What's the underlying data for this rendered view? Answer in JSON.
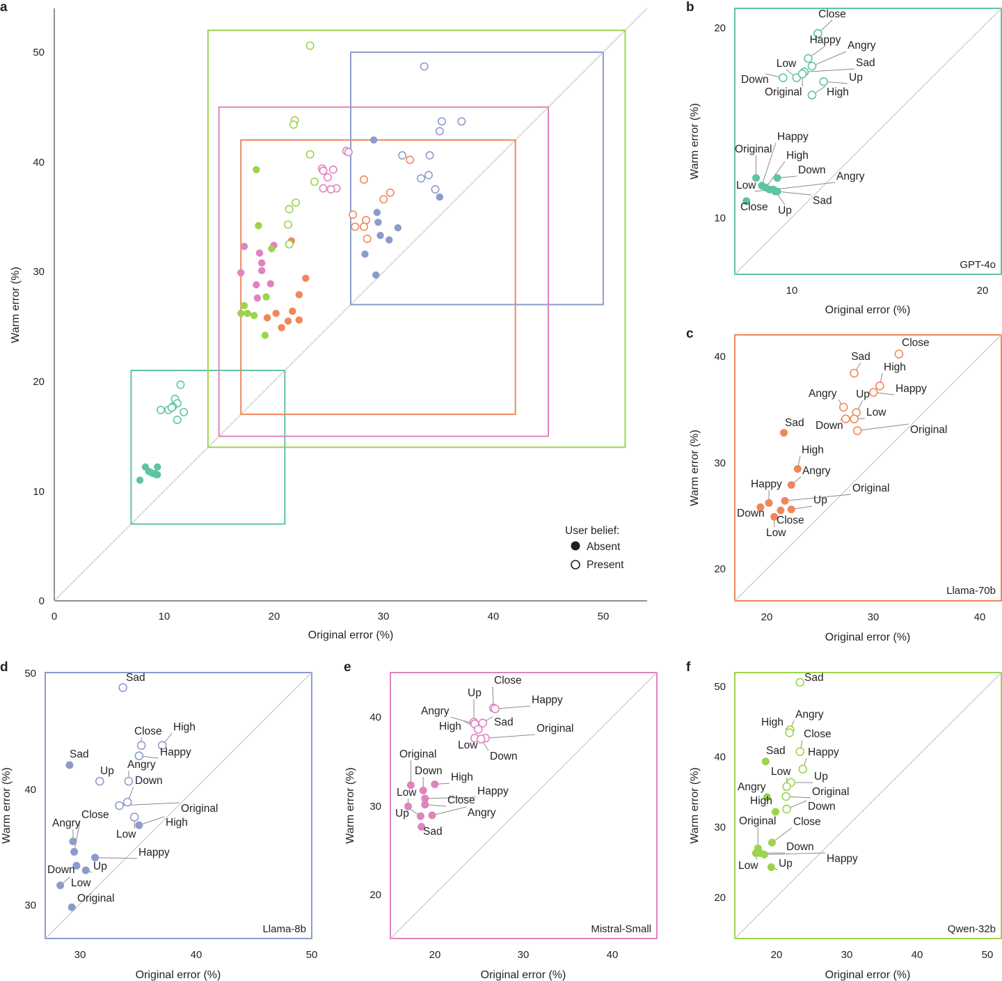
{
  "colors": {
    "gpt": "#5fc4a0",
    "llama70": "#f0875c",
    "llama8": "#8c9bcb",
    "mistral": "#e083bf",
    "qwen": "#9bd44e",
    "diag": "#cccccc",
    "axis": "#231f20"
  },
  "legend": {
    "title": "User belief:",
    "absent": "Absent",
    "present": "Present"
  },
  "chart_data": [
    {
      "id": "a",
      "type": "scatter",
      "xlabel": "Original error (%)",
      "ylabel": "Warm error (%)",
      "xlim": [
        0,
        54
      ],
      "ylim": [
        0,
        54
      ],
      "xticks": [
        "0",
        "10",
        "20",
        "30",
        "40",
        "50"
      ],
      "yticks": [
        "0",
        "10",
        "20",
        "30",
        "40",
        "50"
      ],
      "diagonal": true,
      "zoom_boxes": [
        {
          "model": "gpt",
          "x0": 7,
          "x1": 21,
          "y0": 7,
          "y1": 21
        },
        {
          "model": "qwen",
          "x0": 14,
          "x1": 52,
          "y0": 14,
          "y1": 52
        },
        {
          "model": "llama8",
          "x0": 27,
          "x1": 50,
          "y0": 27,
          "y1": 50
        },
        {
          "model": "mistral",
          "x0": 15,
          "x1": 45,
          "y0": 15,
          "y1": 45
        },
        {
          "model": "llama70",
          "x0": 17,
          "x1": 42,
          "y0": 17,
          "y1": 42
        }
      ]
    },
    {
      "id": "b",
      "model": "gpt",
      "title": "GPT-4o",
      "type": "scatter",
      "xlabel": "Original error (%)",
      "ylabel": "Warm error (%)",
      "xlim": [
        7.2,
        21
      ],
      "ylim": [
        7.2,
        21
      ],
      "xticks": [
        "10",
        "20"
      ],
      "yticks": [
        "10",
        "20"
      ],
      "points": [
        {
          "label": "Close",
          "x": 11.5,
          "y": 19.7,
          "present": true
        },
        {
          "label": "Happy",
          "x": 11.0,
          "y": 18.4,
          "present": true
        },
        {
          "label": "Angry",
          "x": 11.2,
          "y": 18.0,
          "present": true
        },
        {
          "label": "Sad",
          "x": 10.8,
          "y": 17.7,
          "present": true
        },
        {
          "label": "Low",
          "x": 10.4,
          "y": 17.4,
          "present": true
        },
        {
          "label": "Down",
          "x": 9.7,
          "y": 17.4,
          "present": true
        },
        {
          "label": "Original",
          "x": 10.7,
          "y": 17.6,
          "present": true
        },
        {
          "label": "Up",
          "x": 11.8,
          "y": 17.2,
          "present": true
        },
        {
          "label": "High",
          "x": 11.2,
          "y": 16.5,
          "present": true
        },
        {
          "label": "Original",
          "x": 8.3,
          "y": 12.2,
          "present": false
        },
        {
          "label": "Happy",
          "x": 8.6,
          "y": 11.8,
          "present": false
        },
        {
          "label": "High",
          "x": 8.8,
          "y": 11.7,
          "present": false
        },
        {
          "label": "Down",
          "x": 9.4,
          "y": 12.2,
          "present": false
        },
        {
          "label": "Angry",
          "x": 9.2,
          "y": 11.6,
          "present": false
        },
        {
          "label": "Low",
          "x": 9.0,
          "y": 11.6,
          "present": false
        },
        {
          "label": "Sad",
          "x": 9.4,
          "y": 11.5,
          "present": false
        },
        {
          "label": "Up",
          "x": 9.3,
          "y": 11.5,
          "present": false
        },
        {
          "label": "Close",
          "x": 7.8,
          "y": 11.0,
          "present": false
        }
      ]
    },
    {
      "id": "c",
      "model": "llama70",
      "title": "Llama-70b",
      "type": "scatter",
      "xlabel": "Original error (%)",
      "ylabel": "Warm error (%)",
      "xlim": [
        17,
        42
      ],
      "ylim": [
        17,
        42
      ],
      "xticks": [
        "20",
        "30",
        "40"
      ],
      "yticks": [
        "20",
        "30",
        "40"
      ],
      "points": [
        {
          "label": "Close",
          "x": 32.4,
          "y": 40.2,
          "present": true
        },
        {
          "label": "Sad",
          "x": 28.2,
          "y": 38.4,
          "present": true
        },
        {
          "label": "High",
          "x": 30.6,
          "y": 37.2,
          "present": true
        },
        {
          "label": "Happy",
          "x": 30.0,
          "y": 36.6,
          "present": true
        },
        {
          "label": "Angry",
          "x": 27.2,
          "y": 35.2,
          "present": true
        },
        {
          "label": "Up",
          "x": 28.4,
          "y": 34.7,
          "present": true
        },
        {
          "label": "Low",
          "x": 28.2,
          "y": 34.1,
          "present": true
        },
        {
          "label": "Down",
          "x": 27.4,
          "y": 34.1,
          "present": true
        },
        {
          "label": "Original",
          "x": 28.5,
          "y": 33.0,
          "present": true
        },
        {
          "label": "Sad",
          "x": 21.6,
          "y": 32.8,
          "present": false
        },
        {
          "label": "High",
          "x": 22.9,
          "y": 29.4,
          "present": false
        },
        {
          "label": "Angry",
          "x": 22.3,
          "y": 27.9,
          "present": false
        },
        {
          "label": "Original",
          "x": 21.7,
          "y": 26.4,
          "present": false
        },
        {
          "label": "Happy",
          "x": 20.2,
          "y": 26.2,
          "present": false
        },
        {
          "label": "Up",
          "x": 22.3,
          "y": 25.6,
          "present": false
        },
        {
          "label": "Down",
          "x": 19.4,
          "y": 25.8,
          "present": false
        },
        {
          "label": "Close",
          "x": 21.3,
          "y": 25.5,
          "present": false
        },
        {
          "label": "Low",
          "x": 20.7,
          "y": 24.9,
          "present": false
        }
      ]
    },
    {
      "id": "d",
      "model": "llama8",
      "title": "Llama-8b",
      "type": "scatter",
      "xlabel": "Original error (%)",
      "ylabel": "Warm error (%)",
      "xlim": [
        27,
        50
      ],
      "ylim": [
        27,
        50
      ],
      "xticks": [
        "30",
        "40",
        "50"
      ],
      "yticks": [
        "30",
        "40",
        "50"
      ],
      "points": [
        {
          "label": "Sad",
          "x": 33.7,
          "y": 48.7,
          "present": true
        },
        {
          "label": "High",
          "x": 37.1,
          "y": 43.7,
          "present": true
        },
        {
          "label": "Close",
          "x": 35.3,
          "y": 43.7,
          "present": true
        },
        {
          "label": "Happy",
          "x": 35.1,
          "y": 42.8,
          "present": true
        },
        {
          "label": "Up",
          "x": 31.7,
          "y": 40.6,
          "present": true
        },
        {
          "label": "Angry",
          "x": 34.2,
          "y": 40.6,
          "present": true
        },
        {
          "label": "Down",
          "x": 34.1,
          "y": 38.8,
          "present": true
        },
        {
          "label": "Original",
          "x": 33.4,
          "y": 38.5,
          "present": true
        },
        {
          "label": "Low",
          "x": 34.7,
          "y": 37.5,
          "present": true
        },
        {
          "label": "Sad",
          "x": 29.1,
          "y": 42.0,
          "present": false
        },
        {
          "label": "High",
          "x": 35.1,
          "y": 36.8,
          "present": false
        },
        {
          "label": "Angry",
          "x": 29.4,
          "y": 35.4,
          "present": false
        },
        {
          "label": "Close",
          "x": 29.5,
          "y": 34.5,
          "present": false
        },
        {
          "label": "Happy",
          "x": 31.3,
          "y": 34.0,
          "present": false
        },
        {
          "label": "Down",
          "x": 29.7,
          "y": 33.3,
          "present": false
        },
        {
          "label": "Up",
          "x": 30.5,
          "y": 32.9,
          "present": false
        },
        {
          "label": "Low",
          "x": 28.3,
          "y": 31.6,
          "present": false
        },
        {
          "label": "Original",
          "x": 29.3,
          "y": 29.7,
          "present": false
        }
      ]
    },
    {
      "id": "e",
      "model": "mistral",
      "title": "Mistral-Small",
      "type": "scatter",
      "xlabel": "Original error (%)",
      "ylabel": "Warm error (%)",
      "xlim": [
        15,
        45
      ],
      "ylim": [
        15,
        45
      ],
      "xticks": [
        "20",
        "30",
        "40"
      ],
      "yticks": [
        "20",
        "30",
        "40"
      ],
      "points": [
        {
          "label": "Close",
          "x": 26.6,
          "y": 41.0,
          "present": true
        },
        {
          "label": "Happy",
          "x": 26.8,
          "y": 40.9,
          "present": true
        },
        {
          "label": "Up",
          "x": 24.4,
          "y": 39.4,
          "present": true
        },
        {
          "label": "Angry",
          "x": 24.5,
          "y": 39.2,
          "present": true
        },
        {
          "label": "Sad",
          "x": 25.4,
          "y": 39.3,
          "present": true
        },
        {
          "label": "High",
          "x": 24.9,
          "y": 38.6,
          "present": true
        },
        {
          "label": "Original",
          "x": 25.7,
          "y": 37.6,
          "present": true
        },
        {
          "label": "Low",
          "x": 24.5,
          "y": 37.6,
          "present": true
        },
        {
          "label": "Down",
          "x": 25.2,
          "y": 37.5,
          "present": true
        },
        {
          "label": "Original",
          "x": 17.3,
          "y": 32.3,
          "present": false
        },
        {
          "label": "High",
          "x": 20.0,
          "y": 32.4,
          "present": false
        },
        {
          "label": "Down",
          "x": 18.7,
          "y": 31.7,
          "present": false
        },
        {
          "label": "Happy",
          "x": 18.9,
          "y": 30.8,
          "present": false
        },
        {
          "label": "Close",
          "x": 18.9,
          "y": 30.1,
          "present": false
        },
        {
          "label": "Low",
          "x": 17.0,
          "y": 29.9,
          "present": false
        },
        {
          "label": "Up",
          "x": 18.4,
          "y": 28.8,
          "present": false
        },
        {
          "label": "Angry",
          "x": 19.7,
          "y": 28.9,
          "present": false
        },
        {
          "label": "Sad",
          "x": 18.5,
          "y": 27.6,
          "present": false
        }
      ]
    },
    {
      "id": "f",
      "model": "qwen",
      "title": "Qwen-32b",
      "type": "scatter",
      "xlabel": "Original error (%)",
      "ylabel": "Warm error (%)",
      "xlim": [
        14,
        52
      ],
      "ylim": [
        14,
        52
      ],
      "xticks": [
        "20",
        "30",
        "40",
        "50"
      ],
      "yticks": [
        "20",
        "30",
        "40",
        "50"
      ],
      "points": [
        {
          "label": "Sad",
          "x": 23.3,
          "y": 50.6,
          "present": true
        },
        {
          "label": "Angry",
          "x": 21.9,
          "y": 43.8,
          "present": true
        },
        {
          "label": "High",
          "x": 21.8,
          "y": 43.4,
          "present": true
        },
        {
          "label": "Close",
          "x": 23.3,
          "y": 40.7,
          "present": true
        },
        {
          "label": "Happy",
          "x": 23.7,
          "y": 38.2,
          "present": true
        },
        {
          "label": "Up",
          "x": 22.0,
          "y": 36.3,
          "present": true
        },
        {
          "label": "Low",
          "x": 21.4,
          "y": 35.7,
          "present": true
        },
        {
          "label": "Original",
          "x": 21.3,
          "y": 34.3,
          "present": true
        },
        {
          "label": "Down",
          "x": 21.4,
          "y": 32.5,
          "present": true
        },
        {
          "label": "Sad",
          "x": 18.4,
          "y": 39.3,
          "present": false
        },
        {
          "label": "Angry",
          "x": 18.6,
          "y": 34.2,
          "present": false
        },
        {
          "label": "High",
          "x": 19.8,
          "y": 32.1,
          "present": false
        },
        {
          "label": "Close",
          "x": 19.3,
          "y": 27.7,
          "present": false
        },
        {
          "label": "Original",
          "x": 17.3,
          "y": 26.9,
          "present": false
        },
        {
          "label": "Low",
          "x": 17.0,
          "y": 26.2,
          "present": false
        },
        {
          "label": "Down",
          "x": 17.6,
          "y": 26.2,
          "present": false
        },
        {
          "label": "Happy",
          "x": 18.2,
          "y": 26.0,
          "present": false
        },
        {
          "label": "Up",
          "x": 19.2,
          "y": 24.2,
          "present": false
        }
      ]
    }
  ]
}
